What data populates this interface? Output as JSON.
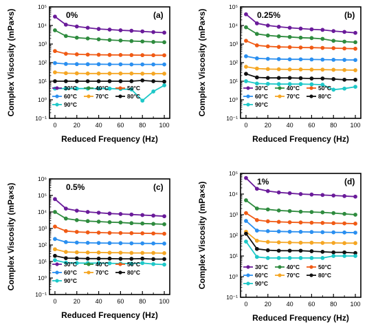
{
  "colors": {
    "30°C": "#6a1b9a",
    "40°C": "#2e8b3e",
    "50°C": "#f05a14",
    "60°C": "#2a8ff0",
    "70°C": "#f5a623",
    "80°C": "#111111",
    "90°C": "#1ec8c8"
  },
  "chart_data": [
    {
      "type": "line",
      "panel_label": "(a)",
      "concentration_label": "0%",
      "xlabel": "Reduced Frequency (Hz)",
      "ylabel": "Complex Viscosity (mPa×s)",
      "xlim": [
        -5,
        105
      ],
      "ylim_log10": [
        -1,
        5
      ],
      "xticks": [
        "0",
        "20",
        "40",
        "60",
        "80",
        "100"
      ],
      "yticks": [
        "10⁻¹",
        "10⁰",
        "10¹",
        "10²",
        "10³",
        "10⁴",
        "10⁵"
      ],
      "x": [
        0,
        10,
        20,
        30,
        40,
        50,
        60,
        70,
        80,
        90,
        100
      ],
      "series": [
        {
          "name": "30°C",
          "values": [
            30000,
            11000,
            8800,
            7500,
            6500,
            6000,
            5500,
            5200,
            4800,
            4400,
            4100
          ]
        },
        {
          "name": "40°C",
          "values": [
            5500,
            2700,
            2200,
            2000,
            1800,
            1650,
            1550,
            1450,
            1380,
            1300,
            1250
          ]
        },
        {
          "name": "50°C",
          "values": [
            420,
            300,
            280,
            270,
            265,
            260,
            258,
            255,
            252,
            250,
            248
          ]
        },
        {
          "name": "60°C",
          "values": [
            95,
            85,
            83,
            82,
            82,
            81,
            81,
            80,
            80,
            80,
            80
          ]
        },
        {
          "name": "70°C",
          "values": [
            30,
            27,
            26.5,
            26,
            26,
            26,
            26,
            26,
            25.5,
            25.5,
            25.5
          ]
        },
        {
          "name": "80°C",
          "values": [
            10,
            10,
            10,
            10,
            10,
            10,
            10,
            10,
            11,
            10,
            9.5
          ]
        },
        {
          "name": "90°C",
          "values": [
            4,
            4,
            4,
            4,
            4,
            4,
            3.8,
            3.6,
            0.9,
            2.8,
            6
          ]
        }
      ],
      "legend": {
        "position": "bottom-left",
        "entries": [
          "30°C",
          "40°C",
          "50°C",
          "60°C",
          "70°C",
          "80°C",
          "90°C"
        ]
      }
    },
    {
      "type": "line",
      "panel_label": "(b)",
      "concentration_label": "0.25%",
      "xlabel": "Reduced Frequency (Hz)",
      "ylabel": "Complex Viscosity (mPa×s)",
      "xlim": [
        -5,
        105
      ],
      "ylim_log10": [
        -1,
        5
      ],
      "xticks": [
        "0",
        "20",
        "40",
        "60",
        "80",
        "100"
      ],
      "yticks": [
        "10⁻¹",
        "10⁰",
        "10¹",
        "10²",
        "10³",
        "10⁴",
        "10⁵"
      ],
      "x": [
        0,
        10,
        20,
        30,
        40,
        50,
        60,
        70,
        80,
        90,
        100
      ],
      "series": [
        {
          "name": "30°C",
          "values": [
            40000,
            13000,
            10000,
            8500,
            7500,
            6800,
            6200,
            5800,
            5000,
            4500,
            4000
          ]
        },
        {
          "name": "40°C",
          "values": [
            8000,
            3500,
            2900,
            2600,
            2400,
            2200,
            2100,
            1900,
            1500,
            1350,
            1250
          ]
        },
        {
          "name": "50°C",
          "values": [
            1500,
            850,
            750,
            700,
            680,
            650,
            640,
            620,
            600,
            580,
            560
          ]
        },
        {
          "name": "60°C",
          "values": [
            220,
            170,
            160,
            155,
            150,
            150,
            148,
            145,
            142,
            140,
            138
          ]
        },
        {
          "name": "70°C",
          "values": [
            60,
            48,
            45,
            44,
            43,
            43,
            42,
            42,
            41,
            40,
            39
          ]
        },
        {
          "name": "80°C",
          "values": [
            25,
            16,
            15,
            15,
            15,
            14.5,
            14,
            14,
            13,
            12,
            12
          ]
        },
        {
          "name": "90°C",
          "values": [
            10,
            7.5,
            7.2,
            7,
            7,
            7,
            6.8,
            6.5,
            3.5,
            4,
            5
          ]
        }
      ],
      "legend": {
        "position": "bottom-left",
        "entries": [
          "30°C",
          "40°C",
          "50°C",
          "60°C",
          "70°C",
          "80°C",
          "90°C"
        ]
      }
    },
    {
      "type": "line",
      "panel_label": "(c)",
      "concentration_label": "0.5%",
      "xlabel": "Reduced Frequency (Hz)",
      "ylabel": "Complex Viscosity (mPa×s)",
      "xlim": [
        -5,
        105
      ],
      "ylim_log10": [
        -1,
        6
      ],
      "xticks": [
        "0",
        "20",
        "40",
        "60",
        "80",
        "100"
      ],
      "yticks": [
        "10⁻¹",
        "10⁰",
        "10¹",
        "10²",
        "10³",
        "10⁴",
        "10⁵",
        "10⁶"
      ],
      "x": [
        0,
        10,
        20,
        30,
        40,
        50,
        60,
        70,
        80,
        90,
        100
      ],
      "series": [
        {
          "name": "30°C",
          "values": [
            60000,
            16000,
            12000,
            10000,
            9000,
            8000,
            7500,
            7000,
            6500,
            6000,
            5500
          ]
        },
        {
          "name": "40°C",
          "values": [
            10000,
            4000,
            3200,
            2800,
            2600,
            2400,
            2300,
            2100,
            2000,
            1900,
            1800
          ]
        },
        {
          "name": "50°C",
          "values": [
            1300,
            700,
            620,
            580,
            560,
            540,
            530,
            520,
            510,
            500,
            480
          ]
        },
        {
          "name": "60°C",
          "values": [
            230,
            150,
            140,
            135,
            132,
            130,
            128,
            126,
            125,
            124,
            122
          ]
        },
        {
          "name": "70°C",
          "values": [
            55,
            38,
            36,
            35,
            35,
            34,
            34,
            33,
            33,
            33,
            32
          ]
        },
        {
          "name": "80°C",
          "values": [
            22,
            16,
            15.5,
            15,
            15,
            15,
            14.5,
            14.5,
            15,
            14,
            14
          ]
        },
        {
          "name": "90°C",
          "values": [
            12,
            8.5,
            8,
            8,
            8,
            7.8,
            7.5,
            7.5,
            8,
            7,
            6.5
          ]
        }
      ],
      "legend": {
        "position": "bottom-left",
        "entries": [
          "30°C",
          "40°C",
          "50°C",
          "60°C",
          "70°C",
          "80°C",
          "90°C"
        ]
      }
    },
    {
      "type": "line",
      "panel_label": "(d)",
      "concentration_label": "1%",
      "xlabel": "Reduced Frequency (Hz)",
      "ylabel": "Complex Viscosity (mPa×s)",
      "xlim": [
        -5,
        105
      ],
      "ylim_log10": [
        -1,
        5
      ],
      "xticks": [
        "0",
        "20",
        "40",
        "60",
        "80",
        "100"
      ],
      "yticks": [
        "10⁻¹",
        "10⁰",
        "10¹",
        "10²",
        "10³",
        "10⁴",
        "10⁵"
      ],
      "x": [
        0,
        10,
        20,
        30,
        40,
        50,
        60,
        70,
        80,
        90,
        100
      ],
      "series": [
        {
          "name": "30°C",
          "values": [
            60000,
            18000,
            14000,
            12000,
            11000,
            10000,
            9500,
            9000,
            8500,
            8000,
            7500
          ]
        },
        {
          "name": "40°C",
          "values": [
            5000,
            2000,
            1800,
            1600,
            1500,
            1400,
            1350,
            1300,
            1200,
            1100,
            1000
          ]
        },
        {
          "name": "50°C",
          "values": [
            1200,
            550,
            480,
            450,
            430,
            420,
            410,
            400,
            390,
            380,
            370
          ]
        },
        {
          "name": "60°C",
          "values": [
            500,
            170,
            160,
            155,
            150,
            148,
            145,
            142,
            140,
            138,
            135
          ]
        },
        {
          "name": "70°C",
          "values": [
            150,
            55,
            48,
            46,
            45,
            44,
            44,
            43,
            43,
            42,
            42
          ]
        },
        {
          "name": "80°C",
          "values": [
            120,
            22,
            19,
            18,
            18,
            18,
            17,
            16,
            15,
            15,
            14
          ]
        },
        {
          "name": "90°C",
          "values": [
            50,
            9,
            8,
            8,
            8,
            8,
            8,
            8,
            10,
            10,
            10
          ]
        }
      ],
      "legend": {
        "position": "bottom-left",
        "entries": [
          "30°C",
          "40°C",
          "50°C",
          "60°C",
          "70°C",
          "80°C",
          "90°C"
        ]
      }
    }
  ]
}
